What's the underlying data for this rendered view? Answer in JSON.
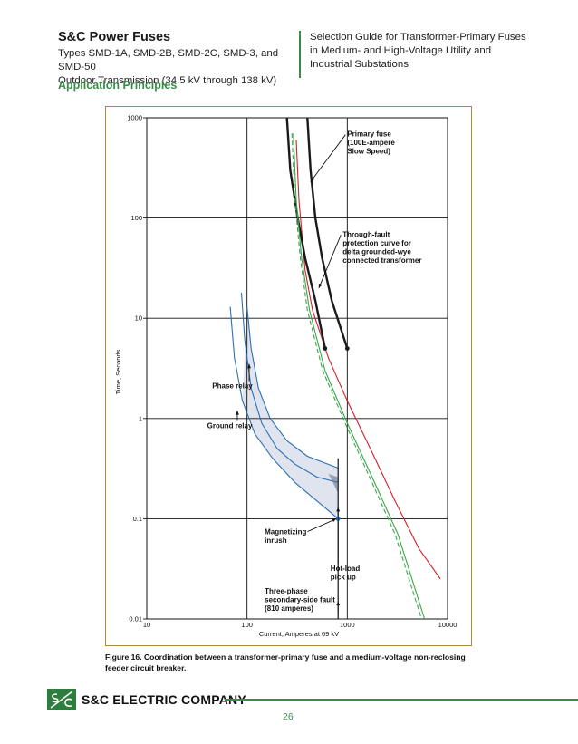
{
  "header": {
    "title": "S&C Power Fuses",
    "subtitle_line1": "Types SMD-1A, SMD-2B, SMD-2C, SMD-3, and SMD-50",
    "subtitle_line2": "Outdoor Transmission (34.5 kV through 138 kV)",
    "right_line1": "Selection Guide for Transformer-Primary Fuses",
    "right_line2": "in Medium- and High-Voltage Utility and",
    "right_line3": "Industrial Substations"
  },
  "section_title": "Application Principles",
  "caption": "Figure 16. Coordination between a transformer-primary fuse and a medium-voltage non-reclosing feeder circuit breaker.",
  "footer": {
    "company": "S&C ELECTRIC COMPANY",
    "page_number": "26"
  },
  "colors": {
    "brand_green": "#3a8a4a",
    "fuse_red": "#d0202a",
    "relay_blue": "#2a6fb5",
    "damage_green": "#3aa64a",
    "band_fill": "#dfe4ee"
  },
  "chart_data": {
    "type": "line",
    "xscale": "log",
    "yscale": "log",
    "xlim": [
      10,
      10000
    ],
    "ylim": [
      0.01,
      1000
    ],
    "xlabel": "Current, Amperes at 69 kV",
    "ylabel": "Time, Seconds",
    "x_ticks": [
      "10",
      "100",
      "1000",
      "10000"
    ],
    "y_ticks": [
      "0.01",
      "0.1",
      "1",
      "10",
      "100",
      "1000"
    ],
    "grid": true,
    "series": [
      {
        "key": "fuse_min",
        "color": "#d0202a",
        "points": [
          [
            310,
            600
          ],
          [
            330,
            150
          ],
          [
            380,
            30
          ],
          [
            450,
            12
          ],
          [
            650,
            4
          ],
          [
            1000,
            1.5
          ],
          [
            1700,
            0.5
          ],
          [
            3000,
            0.15
          ],
          [
            5200,
            0.05
          ],
          [
            8500,
            0.025
          ]
        ]
      },
      {
        "key": "fuse_max",
        "color": "#1a1a1a",
        "points": [
          [
            250,
            1000
          ],
          [
            270,
            300
          ],
          [
            320,
            100
          ],
          [
            380,
            40
          ],
          [
            480,
            15
          ],
          [
            600,
            5
          ]
        ]
      },
      {
        "key": "fuse_max_2",
        "color": "#1a1a1a",
        "points": [
          [
            400,
            1000
          ],
          [
            430,
            300
          ],
          [
            480,
            100
          ],
          [
            560,
            40
          ],
          [
            700,
            15
          ],
          [
            1000,
            5
          ]
        ]
      },
      {
        "key": "damage_solid",
        "color": "#3aa64a",
        "points": [
          [
            290,
            700
          ],
          [
            310,
            150
          ],
          [
            350,
            40
          ],
          [
            420,
            12
          ],
          [
            600,
            3
          ],
          [
            1000,
            0.9
          ],
          [
            1800,
            0.25
          ],
          [
            3200,
            0.07
          ],
          [
            5900,
            0.01
          ]
        ]
      },
      {
        "key": "damage_dashed",
        "color": "#3aa64a",
        "points": [
          [
            280,
            700
          ],
          [
            300,
            150
          ],
          [
            340,
            40
          ],
          [
            400,
            12
          ],
          [
            570,
            3
          ],
          [
            950,
            0.9
          ],
          [
            1700,
            0.25
          ],
          [
            3000,
            0.07
          ],
          [
            5500,
            0.01
          ]
        ]
      },
      {
        "key": "phase_relay",
        "color": "#2a6fb5",
        "points": [
          [
            88,
            18
          ],
          [
            95,
            6
          ],
          [
            110,
            2
          ],
          [
            140,
            0.9
          ],
          [
            200,
            0.5
          ],
          [
            300,
            0.35
          ],
          [
            500,
            0.26
          ],
          [
            810,
            0.23
          ]
        ]
      },
      {
        "key": "ground_relay",
        "color": "#2a6fb5",
        "points": [
          [
            68,
            13
          ],
          [
            75,
            4
          ],
          [
            90,
            1.5
          ],
          [
            120,
            0.7
          ],
          [
            180,
            0.4
          ],
          [
            300,
            0.23
          ],
          [
            500,
            0.15
          ],
          [
            810,
            0.1
          ]
        ]
      },
      {
        "key": "relay_max",
        "color": "#2a6fb5",
        "points": [
          [
            100,
            13
          ],
          [
            110,
            5
          ],
          [
            130,
            2
          ],
          [
            170,
            1
          ],
          [
            250,
            0.6
          ],
          [
            400,
            0.42
          ],
          [
            810,
            0.32
          ]
        ]
      }
    ],
    "points": [
      {
        "x": 600,
        "y": 5,
        "type": "dot",
        "color": "#1a1a1a"
      },
      {
        "x": 1000,
        "y": 5,
        "type": "dot",
        "color": "#1a1a1a"
      },
      {
        "x": 810,
        "y": 0.1,
        "type": "dot",
        "color": "#2a6fb5"
      }
    ],
    "vline": {
      "x": 810,
      "y_from": 0.01,
      "y_to": 0.4
    },
    "annotations": [
      {
        "lines": [
          "Primary fuse",
          "(100E-ampere",
          "Slow Speed)"
        ],
        "text_x": 1000,
        "text_y": 650,
        "arrow_to": [
          430,
          230
        ]
      },
      {
        "lines": [
          "Through-fault",
          "protection curve for",
          "delta grounded-wye",
          "connected transformer"
        ],
        "text_x": 900,
        "text_y": 65,
        "arrow_to": [
          520,
          20
        ]
      },
      {
        "lines": [
          "Phase relay"
        ],
        "text_x": 45,
        "text_y": 2.0,
        "arrow_to": [
          105,
          3.5
        ]
      },
      {
        "lines": [
          "Ground relay"
        ],
        "text_x": 40,
        "text_y": 0.8,
        "arrow_to": [
          80,
          1.2
        ]
      },
      {
        "lines": [
          "Magnetizing",
          "inrush"
        ],
        "text_x": 150,
        "text_y": 0.07,
        "arrow_to": [
          780,
          0.1
        ]
      },
      {
        "lines": [
          "Hot-load",
          "pick up"
        ],
        "text_x": 680,
        "text_y": 0.03,
        "arrow_to": [
          810,
          0.13
        ]
      },
      {
        "lines": [
          "Three-phase",
          "secondary-side fault",
          "(810 amperes)"
        ],
        "text_x": 150,
        "text_y": 0.018,
        "arrow_to": [
          810,
          0.015
        ]
      }
    ]
  }
}
